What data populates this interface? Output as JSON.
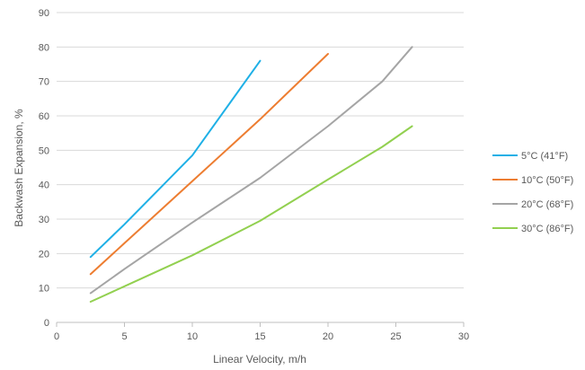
{
  "chart_data": {
    "type": "line",
    "title": "",
    "xlabel": "Linear Velocity, m/h",
    "ylabel": "Backwash Expansion, %",
    "xlim": [
      0,
      30
    ],
    "ylim": [
      0,
      90
    ],
    "xticks": [
      0,
      5,
      10,
      15,
      20,
      25,
      30
    ],
    "yticks": [
      0,
      10,
      20,
      30,
      40,
      50,
      60,
      70,
      80,
      90
    ],
    "grid": "horizontal",
    "legend_position": "right",
    "series": [
      {
        "name": "5°C (41°F)",
        "color": "#1fb0e6",
        "x": [
          2.5,
          5,
          10,
          15
        ],
        "y": [
          19,
          28.5,
          48.5,
          76
        ]
      },
      {
        "name": "10°C (50°F)",
        "color": "#ed7d31",
        "x": [
          2.5,
          5,
          10,
          15,
          20
        ],
        "y": [
          14,
          23,
          41,
          59,
          78
        ]
      },
      {
        "name": "20°C (68°F)",
        "color": "#a5a5a5",
        "x": [
          2.5,
          5,
          10,
          15,
          20,
          24,
          26.2
        ],
        "y": [
          8.5,
          15.5,
          29,
          42,
          57,
          70,
          80
        ]
      },
      {
        "name": "30°C (86°F)",
        "color": "#92d050",
        "x": [
          2.5,
          5,
          10,
          15,
          20,
          24,
          26.2
        ],
        "y": [
          6,
          10.5,
          19.5,
          29.5,
          41.5,
          51,
          57
        ]
      }
    ]
  }
}
